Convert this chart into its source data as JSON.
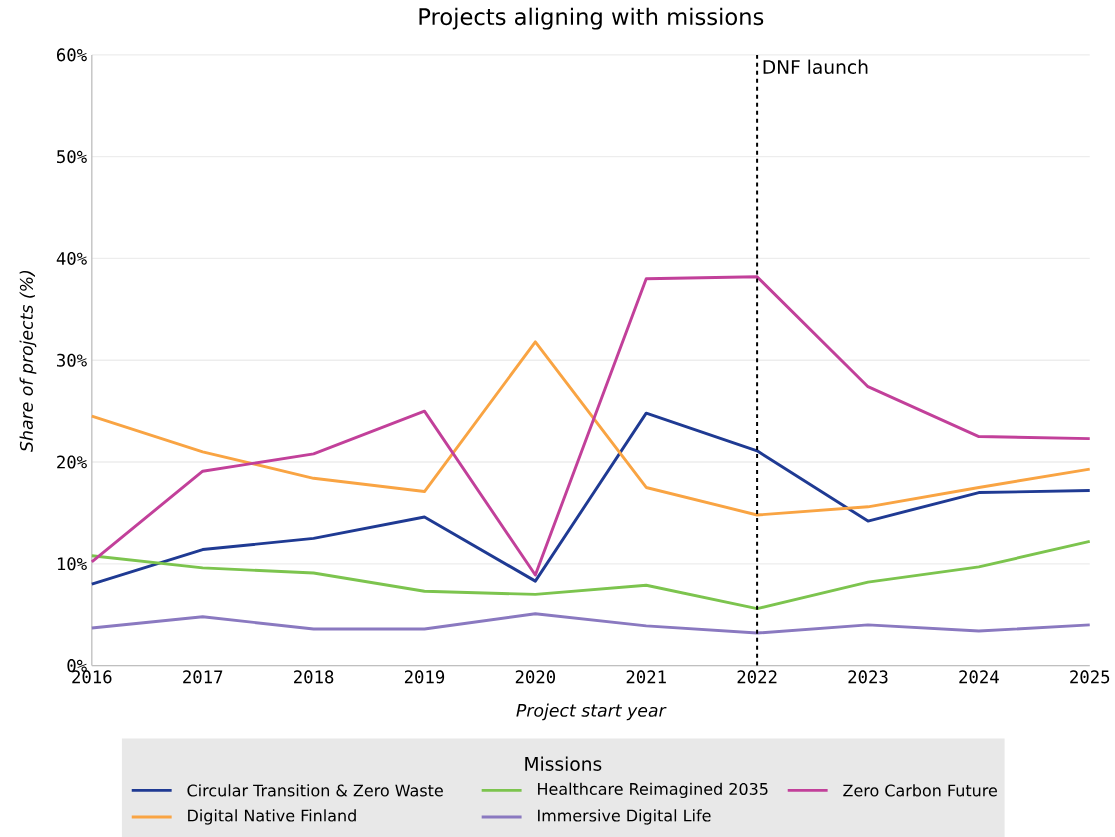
{
  "chart_data": {
    "type": "line",
    "title": "Projects aligning with missions",
    "xlabel": "Project start year",
    "ylabel": "Share of projects (%)",
    "legend_title": "Missions",
    "x": [
      2016,
      2017,
      2018,
      2019,
      2020,
      2021,
      2022,
      2023,
      2024,
      2025
    ],
    "series": [
      {
        "name": "Circular Transition & Zero Waste",
        "color": "#1f3a93",
        "values": [
          8.0,
          11.4,
          12.5,
          14.6,
          8.3,
          24.8,
          21.1,
          14.2,
          17.0,
          17.2
        ]
      },
      {
        "name": "Digital Native Finland",
        "color": "#f9a443",
        "values": [
          24.5,
          21.0,
          18.4,
          17.1,
          31.8,
          17.5,
          14.8,
          15.6,
          17.5,
          19.3
        ]
      },
      {
        "name": "Healthcare Reimagined 2035",
        "color": "#7cc44e",
        "values": [
          10.8,
          9.6,
          9.1,
          7.3,
          7.0,
          7.9,
          5.6,
          8.2,
          9.7,
          12.2
        ]
      },
      {
        "name": "Immersive Digital Life",
        "color": "#8a79c0",
        "values": [
          3.7,
          4.8,
          3.6,
          3.6,
          5.1,
          3.9,
          3.2,
          4.0,
          3.4,
          4.0
        ]
      },
      {
        "name": "Zero Carbon Future",
        "color": "#c2409a",
        "values": [
          10.2,
          19.1,
          20.8,
          25.0,
          8.9,
          38.0,
          38.2,
          27.4,
          22.5,
          22.3
        ]
      }
    ],
    "xlim": [
      2016,
      2025
    ],
    "xticks": [
      2016,
      2017,
      2018,
      2019,
      2020,
      2021,
      2022,
      2023,
      2024,
      2025
    ],
    "ylim": [
      0,
      60
    ],
    "yticks": [
      {
        "value": 0,
        "label": "0%"
      },
      {
        "value": 10,
        "label": "10%"
      },
      {
        "value": 20,
        "label": "20%"
      },
      {
        "value": 30,
        "label": "30%"
      },
      {
        "value": 40,
        "label": "40%"
      },
      {
        "value": 50,
        "label": "50%"
      },
      {
        "value": 60,
        "label": "60%"
      }
    ],
    "ref_lines": [
      {
        "axis": "x",
        "value": 2022,
        "label": "DNF launch",
        "color": "#000000",
        "line_style": "dashed"
      }
    ],
    "grid": "y",
    "legend": "bottom",
    "marker": "none",
    "line_style": "solid"
  }
}
